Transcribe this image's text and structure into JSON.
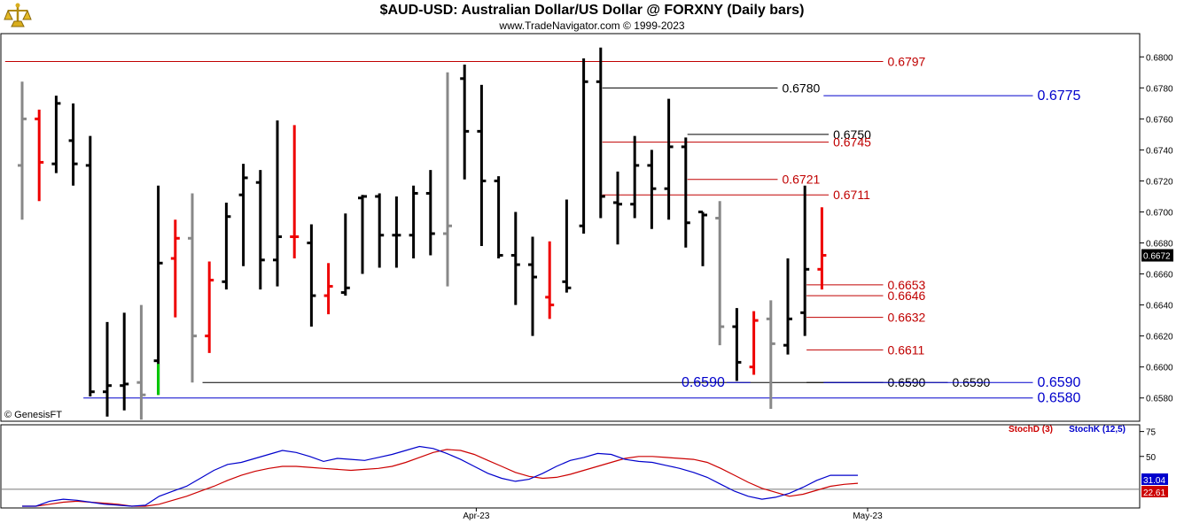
{
  "header": {
    "title": "$AUD-USD:  Australian Dollar/US Dollar @ FORXNY  (Daily bars)",
    "subtitle": "www.TradeNavigator.com © 1999-2023",
    "watermark": "© GenesisFT"
  },
  "chart_data": [
    {
      "type": "ohlc",
      "ylim": [
        0.6565,
        0.6815
      ],
      "yticks": [
        "0.6800",
        "0.6780",
        "0.6760",
        "0.6740",
        "0.6720",
        "0.6700",
        "0.6680",
        "0.6660",
        "0.6640",
        "0.6620",
        "0.6600",
        "0.6580"
      ],
      "xticks": [
        {
          "label": "Apr-23",
          "index": 27
        },
        {
          "label": "May-23",
          "index": 50
        }
      ],
      "last_price": "0.6672",
      "bars": [
        {
          "h": 0.6784,
          "l": 0.6695,
          "o": 0.673,
          "c": 0.676,
          "color": "gray"
        },
        {
          "h": 0.6766,
          "l": 0.6707,
          "o": 0.676,
          "c": 0.6732,
          "color": "red"
        },
        {
          "h": 0.6775,
          "l": 0.6725,
          "o": 0.6731,
          "c": 0.677,
          "color": "black"
        },
        {
          "h": 0.677,
          "l": 0.6717,
          "o": 0.6746,
          "c": 0.6731,
          "color": "black"
        },
        {
          "h": 0.6749,
          "l": 0.6581,
          "o": 0.673,
          "c": 0.6584,
          "color": "black"
        },
        {
          "h": 0.6629,
          "l": 0.6568,
          "o": 0.6584,
          "c": 0.6588,
          "color": "black"
        },
        {
          "h": 0.6635,
          "l": 0.6572,
          "o": 0.6588,
          "c": 0.6589,
          "color": "black"
        },
        {
          "h": 0.664,
          "l": 0.6566,
          "o": 0.659,
          "c": 0.6582,
          "color": "gray"
        },
        {
          "h": 0.6717,
          "l": 0.6582,
          "o": 0.6604,
          "c": 0.6667,
          "color": "black"
        },
        {
          "h": 0.6695,
          "l": 0.6632,
          "o": 0.667,
          "c": 0.6683,
          "color": "red"
        },
        {
          "h": 0.6712,
          "l": 0.659,
          "o": 0.6683,
          "c": 0.662,
          "color": "gray"
        },
        {
          "h": 0.6668,
          "l": 0.6609,
          "o": 0.662,
          "c": 0.6656,
          "color": "red"
        },
        {
          "h": 0.6706,
          "l": 0.665,
          "o": 0.6655,
          "c": 0.6697,
          "color": "black"
        },
        {
          "h": 0.6731,
          "l": 0.6665,
          "o": 0.6711,
          "c": 0.6722,
          "color": "black"
        },
        {
          "h": 0.6727,
          "l": 0.665,
          "o": 0.6719,
          "c": 0.6669,
          "color": "black"
        },
        {
          "h": 0.6759,
          "l": 0.6652,
          "o": 0.6669,
          "c": 0.6684,
          "color": "black"
        },
        {
          "h": 0.6756,
          "l": 0.667,
          "o": 0.6684,
          "c": 0.6684,
          "color": "red"
        },
        {
          "h": 0.6692,
          "l": 0.6626,
          "o": 0.668,
          "c": 0.6646,
          "color": "black"
        },
        {
          "h": 0.6667,
          "l": 0.6634,
          "o": 0.6646,
          "c": 0.6652,
          "color": "red"
        },
        {
          "h": 0.6699,
          "l": 0.6646,
          "o": 0.6648,
          "c": 0.6651,
          "color": "black"
        },
        {
          "h": 0.6711,
          "l": 0.666,
          "o": 0.6709,
          "c": 0.671,
          "color": "black"
        },
        {
          "h": 0.6712,
          "l": 0.6664,
          "o": 0.671,
          "c": 0.6685,
          "color": "black"
        },
        {
          "h": 0.671,
          "l": 0.6664,
          "o": 0.6685,
          "c": 0.6685,
          "color": "black"
        },
        {
          "h": 0.6717,
          "l": 0.667,
          "o": 0.6685,
          "c": 0.6712,
          "color": "black"
        },
        {
          "h": 0.6727,
          "l": 0.6672,
          "o": 0.6712,
          "c": 0.6686,
          "color": "black"
        },
        {
          "h": 0.679,
          "l": 0.6652,
          "o": 0.6686,
          "c": 0.6691,
          "color": "gray"
        },
        {
          "h": 0.6795,
          "l": 0.6721,
          "o": 0.6786,
          "c": 0.6752,
          "color": "black"
        },
        {
          "h": 0.6782,
          "l": 0.6678,
          "o": 0.6752,
          "c": 0.672,
          "color": "black"
        },
        {
          "h": 0.6723,
          "l": 0.667,
          "o": 0.672,
          "c": 0.6672,
          "color": "black"
        },
        {
          "h": 0.67,
          "l": 0.664,
          "o": 0.6672,
          "c": 0.6666,
          "color": "black"
        },
        {
          "h": 0.6684,
          "l": 0.662,
          "o": 0.6666,
          "c": 0.6658,
          "color": "black"
        },
        {
          "h": 0.6681,
          "l": 0.6631,
          "o": 0.6645,
          "c": 0.664,
          "color": "red"
        },
        {
          "h": 0.6708,
          "l": 0.6648,
          "o": 0.6655,
          "c": 0.6651,
          "color": "black"
        },
        {
          "h": 0.6799,
          "l": 0.6686,
          "o": 0.6691,
          "c": 0.6784,
          "color": "black"
        },
        {
          "h": 0.6806,
          "l": 0.6696,
          "o": 0.6784,
          "c": 0.671,
          "color": "black"
        },
        {
          "h": 0.6726,
          "l": 0.6679,
          "o": 0.6706,
          "c": 0.6705,
          "color": "black"
        },
        {
          "h": 0.6749,
          "l": 0.6696,
          "o": 0.6705,
          "c": 0.673,
          "color": "black"
        },
        {
          "h": 0.674,
          "l": 0.6689,
          "o": 0.673,
          "c": 0.6715,
          "color": "black"
        },
        {
          "h": 0.6773,
          "l": 0.6695,
          "o": 0.6715,
          "c": 0.6742,
          "color": "black"
        },
        {
          "h": 0.6748,
          "l": 0.6677,
          "o": 0.6742,
          "c": 0.6693,
          "color": "black"
        },
        {
          "h": 0.67,
          "l": 0.6665,
          "o": 0.67,
          "c": 0.6698,
          "color": "black"
        },
        {
          "h": 0.6707,
          "l": 0.6614,
          "o": 0.6696,
          "c": 0.6626,
          "color": "gray"
        },
        {
          "h": 0.6638,
          "l": 0.6591,
          "o": 0.6626,
          "c": 0.6603,
          "color": "black"
        },
        {
          "h": 0.6636,
          "l": 0.6595,
          "o": 0.66,
          "c": 0.663,
          "color": "red"
        },
        {
          "h": 0.6643,
          "l": 0.6573,
          "o": 0.6631,
          "c": 0.6615,
          "color": "gray"
        },
        {
          "h": 0.667,
          "l": 0.6608,
          "o": 0.6614,
          "c": 0.6631,
          "color": "black"
        },
        {
          "h": 0.6717,
          "l": 0.662,
          "o": 0.6635,
          "c": 0.6663,
          "color": "black"
        },
        {
          "h": 0.6703,
          "l": 0.665,
          "o": 0.6663,
          "c": 0.6672,
          "color": "red"
        }
      ],
      "levels": [
        {
          "value": 0.6797,
          "label": "0.6797",
          "color": "#c00000",
          "from": -1,
          "to": 50.6
        },
        {
          "value": 0.678,
          "label": "0.6780",
          "color": "#000000",
          "from": 34.1,
          "to": 44.4
        },
        {
          "value": 0.6775,
          "label": "0.6775",
          "color": "#0000cc",
          "from": 47.1,
          "to": 59.4
        },
        {
          "value": 0.675,
          "label": "0.6750",
          "color": "#000000",
          "from": 39.1,
          "to": 47.4
        },
        {
          "value": 0.6745,
          "label": "0.6745",
          "color": "#c00000",
          "from": 34.1,
          "to": 47.4
        },
        {
          "value": 0.6721,
          "label": "0.6721",
          "color": "#c00000",
          "from": 39.1,
          "to": 44.4
        },
        {
          "value": 0.6711,
          "label": "0.6711",
          "color": "#c00000",
          "from": 34.1,
          "to": 47.4
        },
        {
          "value": 0.6653,
          "label": "0.6653",
          "color": "#c00000",
          "from": 46.1,
          "to": 50.6
        },
        {
          "value": 0.6646,
          "label": "0.6646",
          "color": "#c00000",
          "from": 46.1,
          "to": 50.6
        },
        {
          "value": 0.6632,
          "label": "0.6632",
          "color": "#c00000",
          "from": 46.1,
          "to": 50.6
        },
        {
          "value": 0.6611,
          "label": "0.6611",
          "color": "#c00000",
          "from": 46.1,
          "to": 50.6
        },
        {
          "value": 0.659,
          "label": "0.6590",
          "color": "#000000",
          "from": 10.6,
          "to": 50.6
        },
        {
          "value": 0.659,
          "label": "0.6590",
          "color": "#000000",
          "from": 46.1,
          "to": 54.4
        },
        {
          "value": 0.659,
          "label": "0.6590",
          "color": "#0000cc",
          "from": 47.1,
          "to": 59.4
        },
        {
          "value": 0.659,
          "label": "0.6590",
          "color": "#0000cc",
          "label_left": true,
          "from": 41.4,
          "to": 42.8
        },
        {
          "value": 0.658,
          "label": "0.6580",
          "color": "#0000cc",
          "from": 3.6,
          "to": 59.4
        }
      ]
    },
    {
      "type": "line",
      "ylim": [
        0,
        80
      ],
      "yticks": [
        "75",
        "50"
      ],
      "reference_line": 17,
      "series": [
        {
          "name": "StochD (3)",
          "color": "#cc0000",
          "last": "22.61",
          "values": [
            0,
            0,
            2,
            4,
            5,
            4,
            3,
            2,
            0,
            0,
            2,
            6,
            10,
            15,
            20,
            26,
            31,
            35,
            38,
            40,
            40,
            39,
            38,
            37,
            36,
            37,
            38,
            40,
            44,
            49,
            54,
            57,
            56,
            52,
            46,
            40,
            34,
            30,
            28,
            29,
            32,
            36,
            40,
            44,
            48,
            50,
            50,
            49,
            48,
            47,
            44,
            38,
            31,
            24,
            18,
            14,
            10,
            12,
            16,
            20,
            22,
            23
          ]
        },
        {
          "name": "StochK (12,5)",
          "color": "#0000cc",
          "last": "31.04",
          "values": [
            0,
            0,
            5,
            7,
            6,
            4,
            2,
            1,
            0,
            1,
            10,
            15,
            20,
            28,
            36,
            42,
            44,
            48,
            52,
            56,
            54,
            50,
            45,
            48,
            47,
            46,
            49,
            52,
            56,
            60,
            58,
            53,
            47,
            40,
            33,
            28,
            25,
            27,
            33,
            40,
            46,
            49,
            53,
            52,
            47,
            45,
            44,
            41,
            38,
            34,
            29,
            22,
            15,
            10,
            7,
            9,
            13,
            19,
            26,
            31,
            31,
            31
          ]
        }
      ]
    }
  ]
}
